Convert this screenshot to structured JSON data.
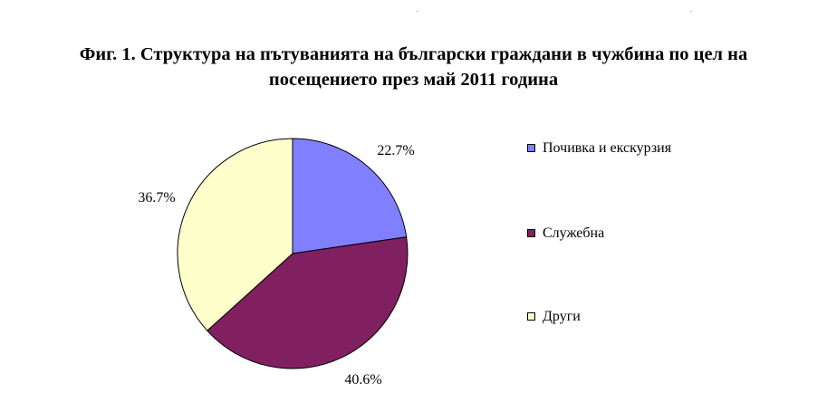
{
  "chart_data": {
    "type": "pie",
    "title": "Фиг. 1. Структура на пътуванията на български граждани в чужбина по цел на посещението през май 2011 година",
    "title_lines": [
      "Фиг. 1. Структура на пътуванията на български граждани в чужбина по цел на",
      "посещението през май 2011 година"
    ],
    "categories": [
      "Почивка и екскурзия",
      "Служебна",
      "Други"
    ],
    "values": [
      22.7,
      40.6,
      36.7
    ],
    "data_labels": [
      "22.7%",
      "40.6%",
      "36.7%"
    ],
    "colors": [
      "#8080ff",
      "#802060",
      "#ffffcc"
    ],
    "legend_position": "right"
  }
}
